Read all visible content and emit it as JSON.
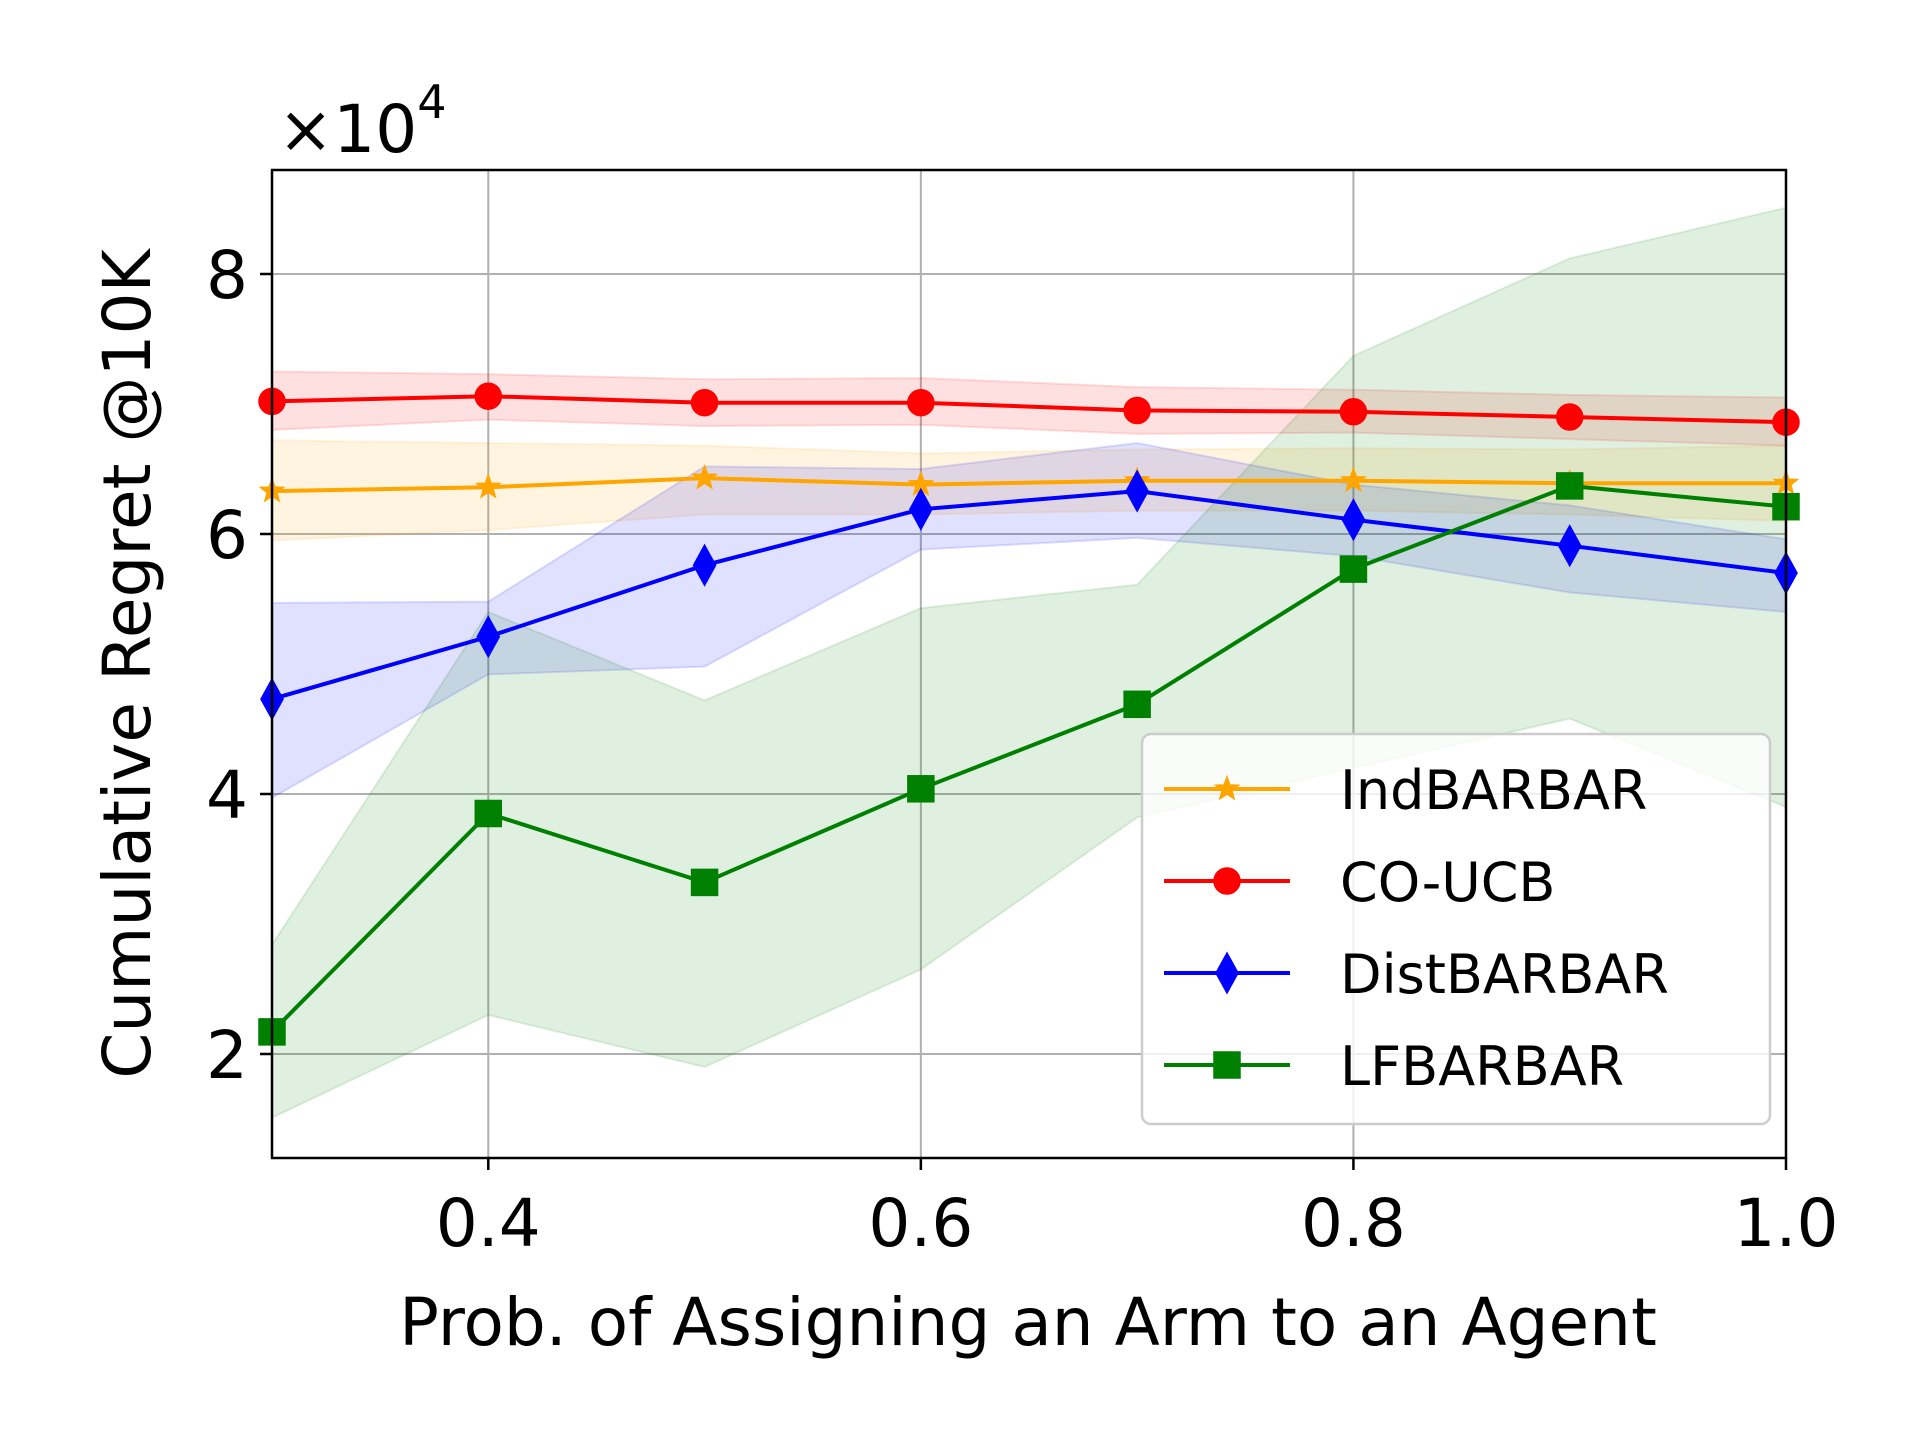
{
  "chart_data": {
    "type": "line",
    "xlabel": "Prob. of Assigning an Arm to an Agent",
    "ylabel": "Cumulative Regret @10K",
    "y_multiplier_base": "×10",
    "y_multiplier_exp": "4",
    "xlim": [
      0.3,
      1.0
    ],
    "ylim": [
      1.2,
      8.8
    ],
    "x_ticks": [
      0.4,
      0.6,
      0.8,
      1.0
    ],
    "x_tick_labels": [
      "0.4",
      "0.6",
      "0.8",
      "1.0"
    ],
    "y_ticks": [
      2,
      4,
      6,
      8
    ],
    "y_tick_labels": [
      "2",
      "4",
      "6",
      "8"
    ],
    "grid": true,
    "legend_position": "lower-right",
    "x": [
      0.3,
      0.4,
      0.5,
      0.6,
      0.7,
      0.8,
      0.9,
      1.0
    ],
    "series": [
      {
        "name": "IndBARBAR",
        "color": "#ffa500",
        "marker": "star",
        "values": [
          6.33,
          6.36,
          6.43,
          6.38,
          6.41,
          6.41,
          6.39,
          6.39
        ],
        "lower": [
          5.95,
          6.03,
          6.15,
          6.15,
          6.18,
          6.18,
          6.15,
          6.1
        ],
        "upper": [
          6.72,
          6.7,
          6.68,
          6.62,
          6.65,
          6.66,
          6.65,
          6.68
        ]
      },
      {
        "name": "CO-UCB",
        "color": "#ff0000",
        "marker": "circle",
        "values": [
          7.02,
          7.06,
          7.01,
          7.01,
          6.95,
          6.94,
          6.9,
          6.86
        ],
        "lower": [
          6.8,
          6.88,
          6.83,
          6.84,
          6.77,
          6.78,
          6.73,
          6.68
        ],
        "upper": [
          7.25,
          7.23,
          7.19,
          7.2,
          7.13,
          7.11,
          7.07,
          7.05
        ]
      },
      {
        "name": "DistBARBAR",
        "color": "#0000ff",
        "marker": "diamond",
        "values": [
          4.73,
          5.21,
          5.76,
          6.19,
          6.33,
          6.11,
          5.91,
          5.7
        ],
        "lower": [
          3.97,
          4.92,
          4.98,
          5.88,
          5.97,
          5.83,
          5.55,
          5.4
        ],
        "upper": [
          5.47,
          5.48,
          6.52,
          6.5,
          6.7,
          6.38,
          6.22,
          5.96
        ]
      },
      {
        "name": "LFBARBAR",
        "color": "#008000",
        "marker": "square",
        "values": [
          2.17,
          3.85,
          3.32,
          4.04,
          4.69,
          5.73,
          6.37,
          6.21
        ],
        "lower": [
          1.51,
          2.3,
          1.9,
          2.65,
          3.82,
          4.2,
          4.58,
          3.9
        ],
        "upper": [
          2.84,
          5.4,
          4.72,
          5.43,
          5.61,
          7.37,
          8.12,
          8.51
        ]
      }
    ]
  }
}
